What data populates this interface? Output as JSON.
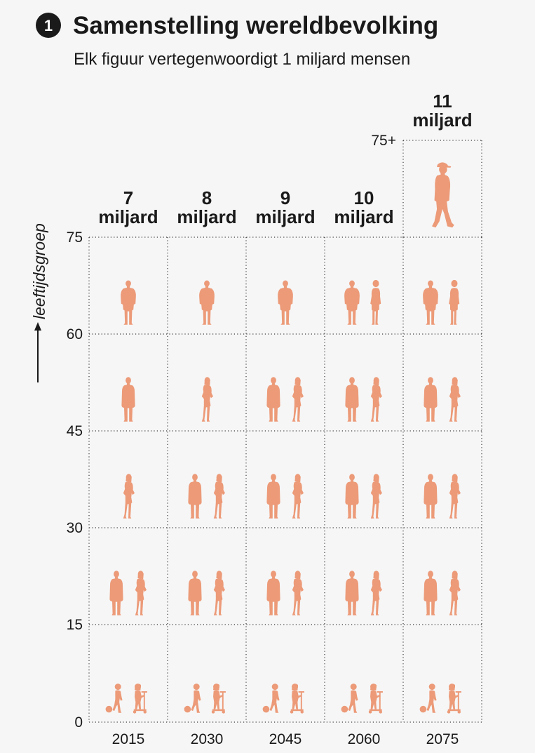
{
  "header": {
    "number": "1",
    "title": "Samenstelling wereldbevolking",
    "subtitle": "Elk figuur vertegenwoordigt 1 miljard mensen"
  },
  "colors": {
    "figure": "#ec9a78",
    "badge": "#1a1a1a",
    "grid": "#3a3a3a",
    "background": "#f6f6f6"
  },
  "chart_data": {
    "type": "pictogram",
    "title": "Samenstelling wereldbevolking",
    "subtitle": "Elk figuur vertegenwoordigt 1 miljard mensen",
    "unit": "miljard mensen",
    "ylabel": "leeftijdsgroep",
    "xlabel": "",
    "age_ticks": [
      "0",
      "15",
      "30",
      "45",
      "60",
      "75",
      "75+"
    ],
    "age_groups": [
      "0-15",
      "15-30",
      "30-45",
      "45-60",
      "60-75",
      "75+"
    ],
    "categories": [
      "2015",
      "2030",
      "2045",
      "2060",
      "2075"
    ],
    "totals": [
      {
        "number": "7",
        "unit": "miljard"
      },
      {
        "number": "8",
        "unit": "miljard"
      },
      {
        "number": "9",
        "unit": "miljard"
      },
      {
        "number": "10",
        "unit": "miljard"
      },
      {
        "number": "11",
        "unit": "miljard"
      }
    ],
    "series": [
      {
        "name": "0-15",
        "values": [
          2,
          2,
          2,
          2,
          2
        ],
        "figures": [
          "child",
          "child-scooter"
        ]
      },
      {
        "name": "15-30",
        "values": [
          2,
          2,
          2,
          2,
          2
        ],
        "figures": [
          "man",
          "woman"
        ]
      },
      {
        "name": "30-45",
        "values": [
          1,
          2,
          2,
          2,
          2
        ],
        "figures": [
          "man",
          "woman"
        ]
      },
      {
        "name": "45-60",
        "values": [
          1,
          1,
          2,
          2,
          2
        ],
        "figures": [
          "man",
          "woman"
        ]
      },
      {
        "name": "60-75",
        "values": [
          1,
          1,
          1,
          2,
          2
        ],
        "figures": [
          "senior-man",
          "senior-woman"
        ]
      },
      {
        "name": "75+",
        "values": [
          0,
          0,
          0,
          0,
          1
        ],
        "figures": [
          "elder-hat"
        ]
      }
    ],
    "single_figure": {
      "0-15": [
        "child",
        "child",
        "child",
        "child",
        "child"
      ],
      "15-30": [
        "man",
        "man",
        "man",
        "man",
        "man"
      ],
      "30-45": [
        "woman",
        "man",
        "man",
        "man",
        "man"
      ],
      "45-60": [
        "man",
        "woman",
        "man",
        "man",
        "man"
      ],
      "60-75": [
        "senior-man",
        "senior-man",
        "senior-man",
        "senior-man",
        "senior-man"
      ],
      "75+": [
        "elder-hat",
        "elder-hat",
        "elder-hat",
        "elder-hat",
        "elder-hat"
      ]
    }
  }
}
